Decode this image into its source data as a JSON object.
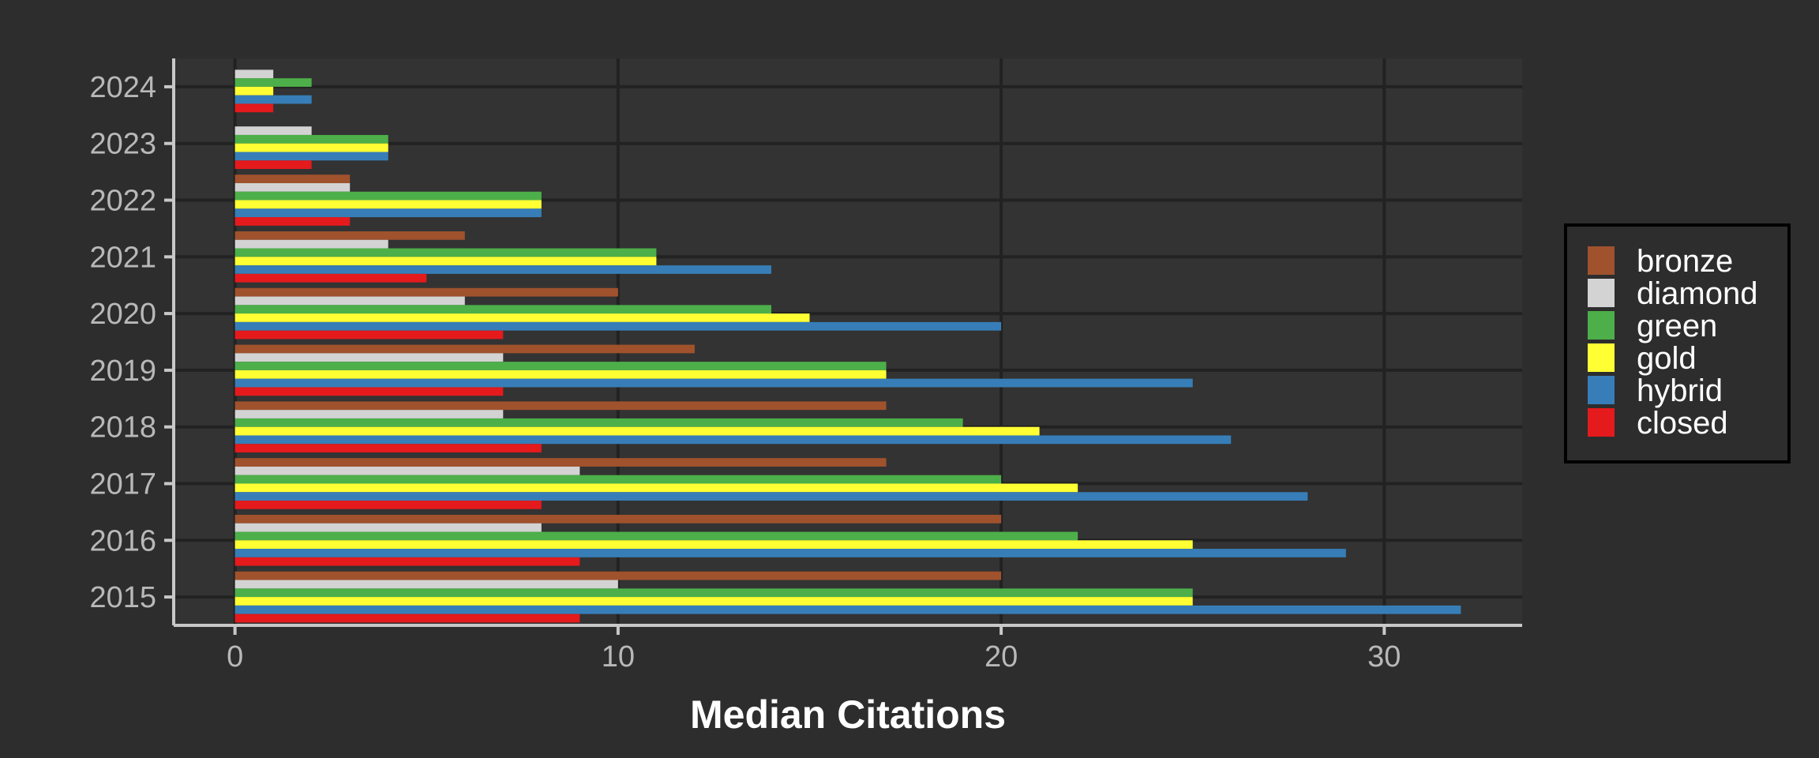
{
  "chart_data": {
    "type": "bar",
    "orientation": "horizontal",
    "title": "",
    "xlabel": "Median Citations",
    "ylabel": "",
    "categories": [
      "2015",
      "2016",
      "2017",
      "2018",
      "2019",
      "2020",
      "2021",
      "2022",
      "2023",
      "2024"
    ],
    "xlim": [
      -1.6,
      33.6
    ],
    "x_ticks": [
      0,
      10,
      20,
      30
    ],
    "grid": true,
    "legend_position": "right",
    "series": [
      {
        "name": "bronze",
        "color": "#A0522D",
        "values": [
          20,
          20,
          17,
          17,
          12,
          10,
          6,
          3,
          0,
          0
        ]
      },
      {
        "name": "diamond",
        "color": "#D3D3D3",
        "values": [
          10,
          8,
          9,
          7,
          7,
          6,
          4,
          3,
          2,
          1
        ]
      },
      {
        "name": "green",
        "color": "#4DAF4A",
        "values": [
          25,
          22,
          20,
          19,
          17,
          14,
          11,
          8,
          4,
          2
        ]
      },
      {
        "name": "gold",
        "color": "#FFFF33",
        "values": [
          25,
          25,
          22,
          21,
          17,
          15,
          11,
          8,
          4,
          1
        ]
      },
      {
        "name": "hybrid",
        "color": "#377EB8",
        "values": [
          32,
          29,
          28,
          26,
          25,
          20,
          14,
          8,
          4,
          2
        ]
      },
      {
        "name": "closed",
        "color": "#E41A1C",
        "values": [
          9,
          9,
          8,
          8,
          7,
          7,
          5,
          3,
          2,
          1
        ]
      }
    ]
  }
}
